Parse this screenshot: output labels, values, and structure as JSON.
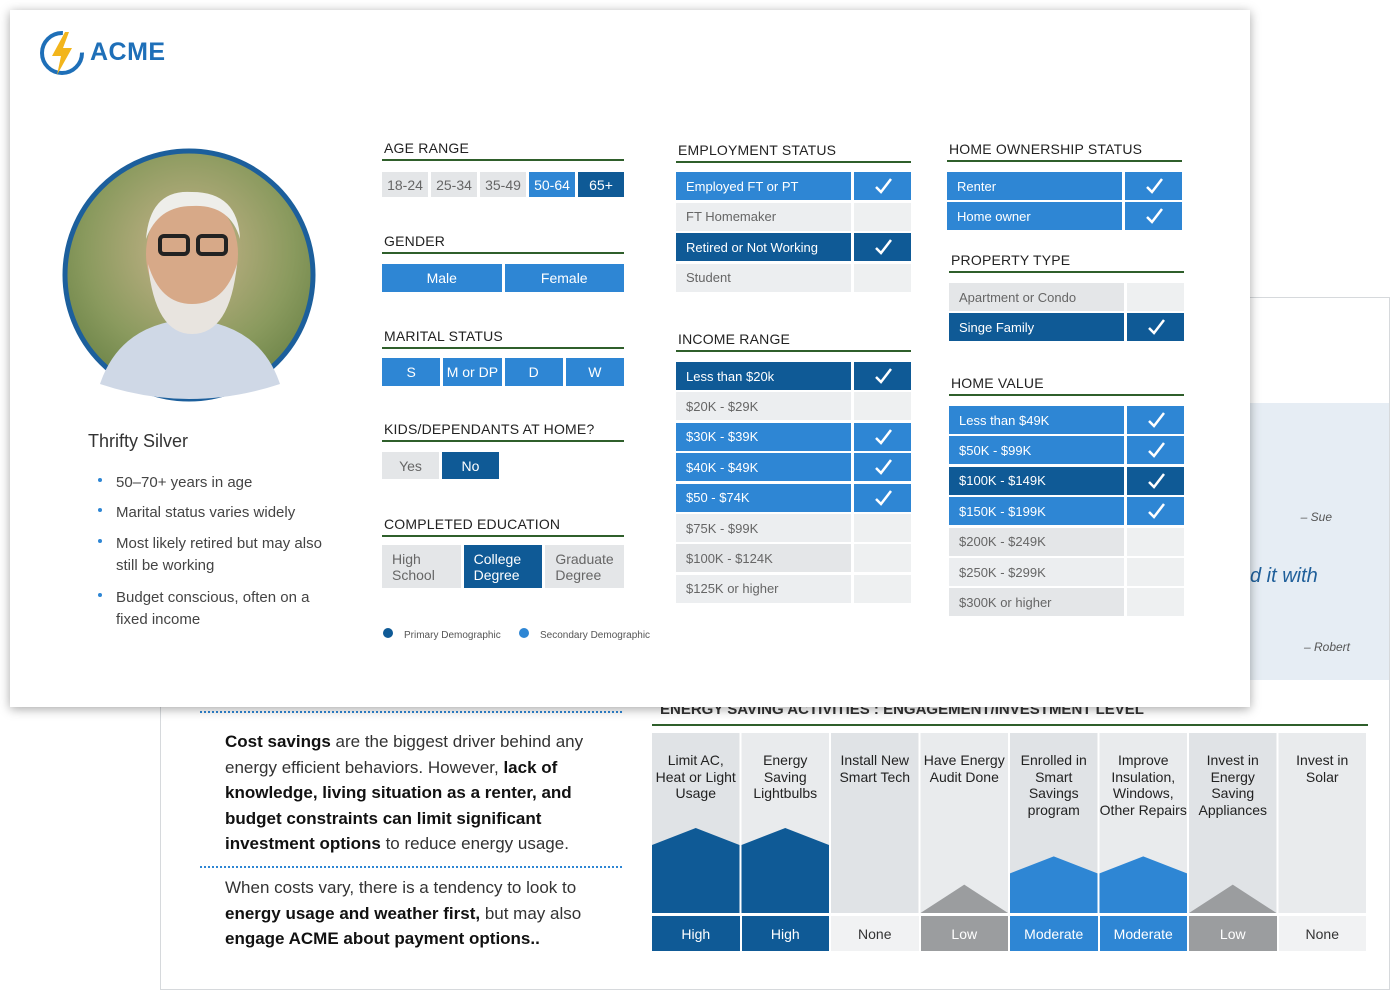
{
  "logo": {
    "text": "ACME"
  },
  "persona": {
    "name": "Thrifty Silver",
    "bullets": [
      "50–70+ years in age",
      "Marital status varies widely",
      "Most likely retired but may also still be working",
      "Budget conscious, often on a fixed income"
    ]
  },
  "colors": {
    "primary": "#0f5a96",
    "secondary": "#2e86d4",
    "none": "#e4e6e8"
  },
  "demographics": [
    {
      "title": "AGE RANGE",
      "options": [
        {
          "label": "18-24",
          "state": "none"
        },
        {
          "label": "25-34",
          "state": "none"
        },
        {
          "label": "35-49",
          "state": "none"
        },
        {
          "label": "50-64",
          "state": "secondary"
        },
        {
          "label": "65+",
          "state": "primary"
        }
      ]
    },
    {
      "title": "GENDER",
      "options": [
        {
          "label": "Male",
          "state": "secondary"
        },
        {
          "label": "Female",
          "state": "secondary"
        }
      ]
    },
    {
      "title": "MARITAL STATUS",
      "options": [
        {
          "label": "S",
          "state": "secondary"
        },
        {
          "label": "M or DP",
          "state": "secondary"
        },
        {
          "label": "D",
          "state": "secondary"
        },
        {
          "label": "W",
          "state": "secondary"
        }
      ]
    },
    {
      "title": "KIDS/DEPENDANTS AT HOME?",
      "options": [
        {
          "label": "Yes",
          "state": "none"
        },
        {
          "label": "No",
          "state": "primary"
        }
      ]
    },
    {
      "title": "COMPLETED EDUCATION",
      "options": [
        {
          "label": "High School",
          "state": "none"
        },
        {
          "label": "College Degree",
          "state": "primary"
        },
        {
          "label": "Graduate Degree",
          "state": "none"
        }
      ]
    }
  ],
  "legend": [
    {
      "label": "Primary Demographic",
      "state": "primary"
    },
    {
      "label": "Secondary Demographic",
      "state": "secondary"
    }
  ],
  "checklists": [
    {
      "title": "EMPLOYMENT STATUS",
      "rows": [
        {
          "label": "Employed FT or PT",
          "state": "secondary",
          "checked": true
        },
        {
          "label": "FT Homemaker",
          "state": "none",
          "checked": false
        },
        {
          "label": "Retired or Not Working",
          "state": "primary",
          "checked": true
        },
        {
          "label": "Student",
          "state": "none",
          "checked": false
        }
      ]
    },
    {
      "title": "INCOME RANGE",
      "rows": [
        {
          "label": "Less than $20k",
          "state": "primary",
          "checked": true
        },
        {
          "label": "$20K - $29K",
          "state": "none",
          "checked": false
        },
        {
          "label": "$30K - $39K",
          "state": "secondary",
          "checked": true
        },
        {
          "label": "$40K - $49K",
          "state": "secondary",
          "checked": true
        },
        {
          "label": "$50 - $74K",
          "state": "secondary",
          "checked": true
        },
        {
          "label": "$75K - $99K",
          "state": "none",
          "checked": false
        },
        {
          "label": "$100K - $124K",
          "state": "none",
          "checked": false
        },
        {
          "label": "$125K or higher",
          "state": "none",
          "checked": false
        }
      ]
    },
    {
      "title": "HOME OWNERSHIP STATUS",
      "rows": [
        {
          "label": "Renter",
          "state": "secondary",
          "checked": true
        },
        {
          "label": "Home owner",
          "state": "secondary",
          "checked": true
        }
      ]
    },
    {
      "title": "PROPERTY TYPE",
      "rows": [
        {
          "label": "Apartment or Condo",
          "state": "none",
          "checked": false
        },
        {
          "label": "Singe Family",
          "state": "primary",
          "checked": true
        }
      ]
    },
    {
      "title": "HOME VALUE",
      "rows": [
        {
          "label": "Less than $49K",
          "state": "secondary",
          "checked": true
        },
        {
          "label": "$50K - $99K",
          "state": "secondary",
          "checked": true
        },
        {
          "label": "$100K - $149K",
          "state": "primary",
          "checked": true
        },
        {
          "label": "$150K - $199K",
          "state": "secondary",
          "checked": true
        },
        {
          "label": "$200K - $249K",
          "state": "none",
          "checked": false
        },
        {
          "label": "$250K - $299K",
          "state": "none",
          "checked": false
        },
        {
          "label": "$300K or higher",
          "state": "none",
          "checked": false
        }
      ]
    }
  ],
  "quotes": {
    "attribution_1": "– Sue",
    "fragment": "d it with",
    "attribution_2": "– Robert"
  },
  "insights": {
    "paragraphs": [
      [
        {
          "text": "Cost savings",
          "bold": true
        },
        {
          "text": " are the biggest driver behind any energy efficient behaviors. However, ",
          "bold": false
        },
        {
          "text": "lack of knowledge, living situation as a renter, and budget constraints can limit significant investment options",
          "bold": true
        },
        {
          "text": " to reduce energy usage.",
          "bold": false
        }
      ],
      [
        {
          "text": "When costs vary, there is a tendency to look to ",
          "bold": false
        },
        {
          "text": "energy usage and weather first,",
          "bold": true
        },
        {
          "text": " but may also ",
          "bold": false
        },
        {
          "text": "engage ACME about payment options..",
          "bold": true
        }
      ]
    ]
  },
  "activities": {
    "title": "ENERGY SAVING ACTIVITIES : ENGAGEMENT/INVESTMENT LEVEL",
    "scale": [
      0,
      3
    ],
    "items": [
      {
        "label": "Limit AC, Heat or Light Usage",
        "level": "High",
        "value": 3,
        "color": "#0f5a96"
      },
      {
        "label": "Energy Saving Lightbulbs",
        "level": "High",
        "value": 3,
        "color": "#0f5a96"
      },
      {
        "label": "Install New Smart Tech",
        "level": "None",
        "value": 0,
        "color": "#e4e6e8"
      },
      {
        "label": "Have Energy Audit Done",
        "level": "Low",
        "value": 1,
        "color": "#9b9d9f"
      },
      {
        "label": "Enrolled in Smart Savings program",
        "level": "Moderate",
        "value": 2,
        "color": "#2e86d4"
      },
      {
        "label": "Improve Insulation, Windows, Other Repairs",
        "level": "Moderate",
        "value": 2,
        "color": "#2e86d4"
      },
      {
        "label": "Invest in Energy Saving Appliances",
        "level": "Low",
        "value": 1,
        "color": "#9b9d9f"
      },
      {
        "label": "Invest in Solar",
        "level": "None",
        "value": 0,
        "color": "#e4e6e8"
      }
    ]
  }
}
